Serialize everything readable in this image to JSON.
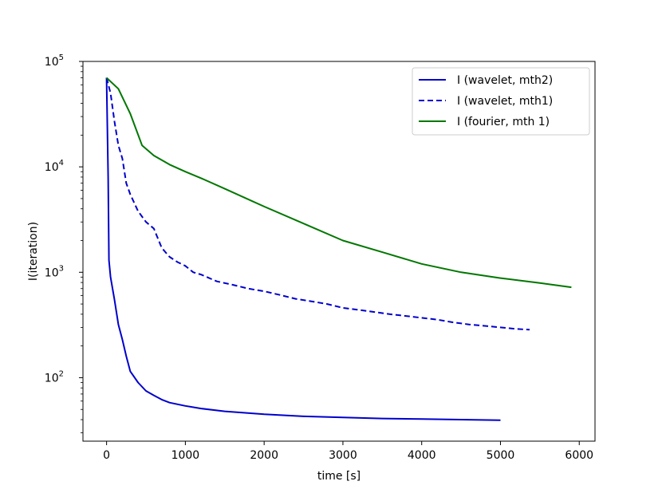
{
  "chart_data": {
    "type": "line",
    "title": "",
    "xlabel": "time [s]",
    "ylabel": "I(iteration)",
    "xlim": [
      -300,
      6200
    ],
    "ylim": [
      25,
      100000
    ],
    "yscale": "log",
    "xticks": [
      0,
      1000,
      2000,
      3000,
      4000,
      5000,
      6000
    ],
    "xtick_labels": [
      "0",
      "1000",
      "2000",
      "3000",
      "4000",
      "5000",
      "6000"
    ],
    "ytick_labels": [
      {
        "base": "10",
        "exp": "2",
        "value": 100
      },
      {
        "base": "10",
        "exp": "3",
        "value": 1000
      },
      {
        "base": "10",
        "exp": "4",
        "value": 10000
      },
      {
        "base": "10",
        "exp": "5",
        "value": 100000
      }
    ],
    "grid": false,
    "legend_position": "top-right",
    "series": [
      {
        "name": "I (wavelet, mth2)",
        "color": "#0000cc",
        "style": "solid",
        "points": [
          [
            0,
            70000
          ],
          [
            20,
            8000
          ],
          [
            30,
            1300
          ],
          [
            50,
            900
          ],
          [
            100,
            550
          ],
          [
            150,
            320
          ],
          [
            200,
            230
          ],
          [
            250,
            160
          ],
          [
            300,
            115
          ],
          [
            400,
            90
          ],
          [
            500,
            75
          ],
          [
            600,
            68
          ],
          [
            700,
            62
          ],
          [
            800,
            58
          ],
          [
            1000,
            54
          ],
          [
            1200,
            51
          ],
          [
            1500,
            48
          ],
          [
            2000,
            45
          ],
          [
            2500,
            43
          ],
          [
            3000,
            42
          ],
          [
            3500,
            41
          ],
          [
            4000,
            40.5
          ],
          [
            4500,
            40
          ],
          [
            5000,
            39.5
          ]
        ]
      },
      {
        "name": "I (wavelet, mth1)",
        "color": "#0000cc",
        "style": "dashed",
        "points": [
          [
            0,
            70000
          ],
          [
            50,
            50000
          ],
          [
            100,
            27000
          ],
          [
            150,
            16000
          ],
          [
            200,
            12000
          ],
          [
            250,
            7000
          ],
          [
            300,
            5500
          ],
          [
            400,
            3800
          ],
          [
            500,
            3000
          ],
          [
            600,
            2600
          ],
          [
            700,
            1700
          ],
          [
            800,
            1400
          ],
          [
            900,
            1250
          ],
          [
            1000,
            1150
          ],
          [
            1100,
            1000
          ],
          [
            1200,
            950
          ],
          [
            1400,
            820
          ],
          [
            1600,
            760
          ],
          [
            1800,
            700
          ],
          [
            2000,
            660
          ],
          [
            2200,
            610
          ],
          [
            2400,
            560
          ],
          [
            2600,
            530
          ],
          [
            2800,
            500
          ],
          [
            3000,
            460
          ],
          [
            3200,
            440
          ],
          [
            3400,
            420
          ],
          [
            3600,
            400
          ],
          [
            3800,
            385
          ],
          [
            4000,
            370
          ],
          [
            4200,
            355
          ],
          [
            4400,
            335
          ],
          [
            4600,
            320
          ],
          [
            4800,
            310
          ],
          [
            5000,
            300
          ],
          [
            5200,
            290
          ],
          [
            5370,
            285
          ]
        ]
      },
      {
        "name": "I (fourier, mth 1)",
        "color": "#007700",
        "style": "solid",
        "points": [
          [
            0,
            70000
          ],
          [
            150,
            55000
          ],
          [
            300,
            32000
          ],
          [
            450,
            16000
          ],
          [
            600,
            12800
          ],
          [
            800,
            10500
          ],
          [
            1000,
            9000
          ],
          [
            1200,
            7800
          ],
          [
            1500,
            6200
          ],
          [
            2000,
            4200
          ],
          [
            2500,
            2900
          ],
          [
            3000,
            2000
          ],
          [
            3500,
            1550
          ],
          [
            4000,
            1200
          ],
          [
            4500,
            1000
          ],
          [
            5000,
            880
          ],
          [
            5500,
            790
          ],
          [
            5900,
            720
          ]
        ]
      }
    ]
  }
}
